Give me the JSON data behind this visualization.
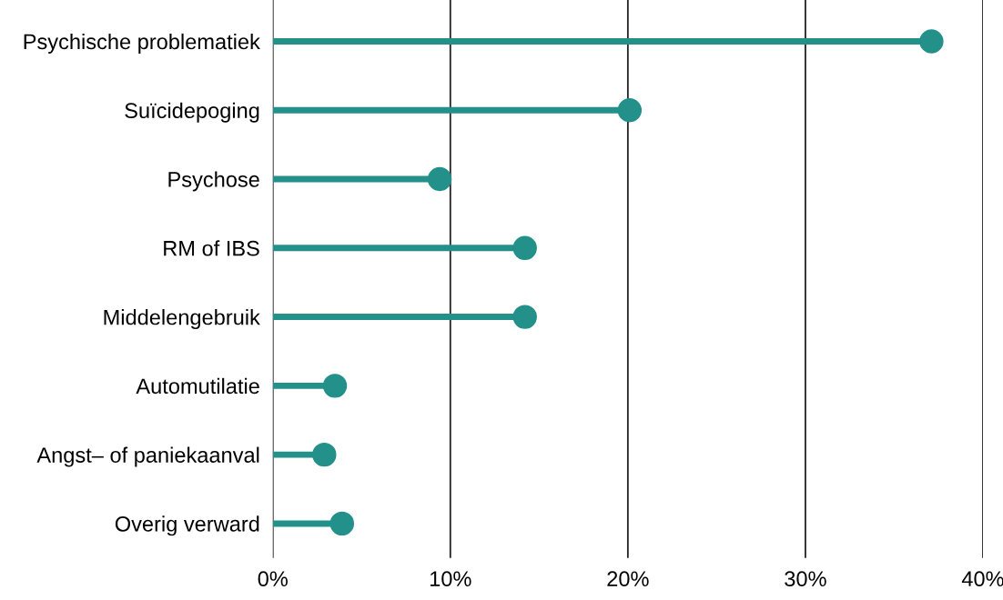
{
  "chart_data": {
    "type": "lollipop",
    "orientation": "horizontal",
    "categories": [
      "Psychische problematiek",
      "Suïcidepoging",
      "Psychose",
      "RM of IBS",
      "Middelengebruik",
      "Automutilatie",
      "Angst– of paniekaanval",
      "Overig verward"
    ],
    "values": [
      37.1,
      20.1,
      9.4,
      14.2,
      14.2,
      3.5,
      2.9,
      3.9
    ],
    "color": "#23908a",
    "xlim": [
      0,
      40
    ],
    "xticks": [
      {
        "value": 0,
        "label": "0%"
      },
      {
        "value": 10,
        "label": "10%"
      },
      {
        "value": 20,
        "label": "20%"
      },
      {
        "value": 30,
        "label": "30%"
      },
      {
        "value": 40,
        "label": "40%"
      }
    ],
    "grid": "x",
    "marker": "circle"
  }
}
